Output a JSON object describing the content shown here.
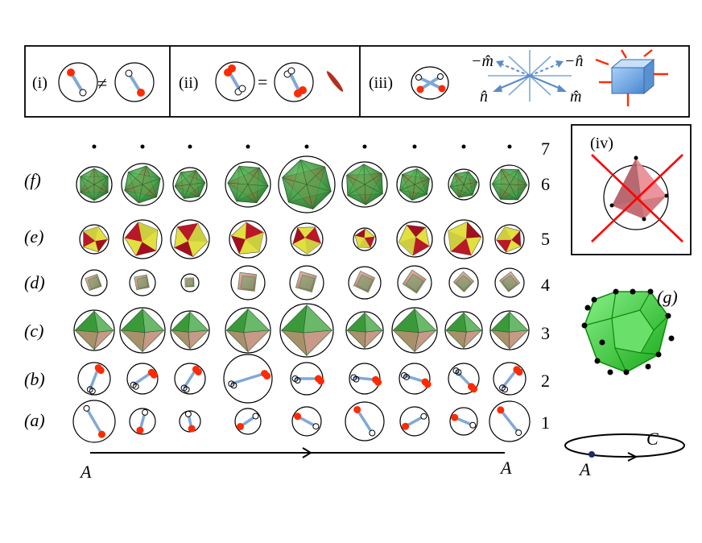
{
  "panel_top": {
    "i": {
      "label": "(i)",
      "relation": "≠"
    },
    "ii": {
      "label": "(ii)",
      "relation": "="
    },
    "iii": {
      "label": "(iii)",
      "axis_labels": [
        "−m̂",
        "−n̂",
        "n̂",
        "m̂"
      ]
    }
  },
  "panel_iv": {
    "label": "(iv)"
  },
  "panel_g": {
    "label": "(g)"
  },
  "rows": [
    {
      "letter": "(f)",
      "number": "6",
      "shape": "icosahedron"
    },
    {
      "letter": "(e)",
      "number": "5",
      "shape": "tetra-colored"
    },
    {
      "letter": "(d)",
      "number": "4",
      "shape": "cube"
    },
    {
      "letter": "(c)",
      "number": "3",
      "shape": "octahedron"
    },
    {
      "letter": "(b)",
      "number": "2",
      "shape": "dipole-pair"
    },
    {
      "letter": "(a)",
      "number": "1",
      "shape": "dipole"
    }
  ],
  "row_top_number": "7",
  "path": {
    "start": "A",
    "end": "A"
  },
  "loop": {
    "curve_label": "C",
    "point_label": "A"
  },
  "colors": {
    "red": "#ff2a00",
    "stick": "#7fa8d8",
    "green": "#3caa3c",
    "crimson": "#a01020",
    "yellow": "#e0e040",
    "cube_blue": "#6fa8e0",
    "cross": "#ff0000"
  }
}
